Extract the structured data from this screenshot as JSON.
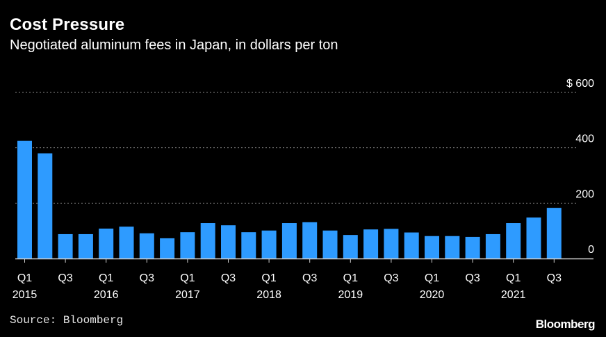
{
  "header": {
    "title": "Cost Pressure",
    "subtitle": "Negotiated aluminum fees in Japan, in dollars per ton"
  },
  "footer": {
    "source": "Source: Bloomberg",
    "brand": "Bloomberg"
  },
  "colors": {
    "bar": "#2e9bff",
    "background": "#000000",
    "grid": "#8a8a8a",
    "text": "#ffffff"
  },
  "chart_data": {
    "type": "bar",
    "title": "Cost Pressure",
    "subtitle": "Negotiated aluminum fees in Japan, in dollars per ton",
    "categories": [
      "Q1 2015",
      "Q2 2015",
      "Q3 2015",
      "Q4 2015",
      "Q1 2016",
      "Q2 2016",
      "Q3 2016",
      "Q4 2016",
      "Q1 2017",
      "Q2 2017",
      "Q3 2017",
      "Q4 2017",
      "Q1 2018",
      "Q2 2018",
      "Q3 2018",
      "Q4 2018",
      "Q1 2019",
      "Q2 2019",
      "Q3 2019",
      "Q4 2019",
      "Q1 2020",
      "Q2 2020",
      "Q3 2020",
      "Q4 2020",
      "Q1 2021",
      "Q2 2021",
      "Q3 2021"
    ],
    "values": [
      425,
      380,
      88,
      88,
      108,
      115,
      91,
      73,
      95,
      128,
      120,
      95,
      101,
      128,
      131,
      101,
      85,
      105,
      107,
      94,
      81,
      81,
      78,
      88,
      128,
      148,
      183
    ],
    "ylim": [
      0,
      600
    ],
    "yticks": [
      {
        "value": 600,
        "label": "$ 600"
      },
      {
        "value": 400,
        "label": "400"
      },
      {
        "value": 200,
        "label": "200"
      },
      {
        "value": 0,
        "label": "0"
      }
    ],
    "xticks": [
      {
        "index": 0,
        "quarter": "Q1",
        "year": "2015"
      },
      {
        "index": 2,
        "quarter": "Q3",
        "year": ""
      },
      {
        "index": 4,
        "quarter": "Q1",
        "year": "2016"
      },
      {
        "index": 6,
        "quarter": "Q3",
        "year": ""
      },
      {
        "index": 8,
        "quarter": "Q1",
        "year": "2017"
      },
      {
        "index": 10,
        "quarter": "Q3",
        "year": ""
      },
      {
        "index": 12,
        "quarter": "Q1",
        "year": "2018"
      },
      {
        "index": 14,
        "quarter": "Q3",
        "year": ""
      },
      {
        "index": 16,
        "quarter": "Q1",
        "year": "2019"
      },
      {
        "index": 18,
        "quarter": "Q3",
        "year": ""
      },
      {
        "index": 20,
        "quarter": "Q1",
        "year": "2020"
      },
      {
        "index": 22,
        "quarter": "Q3",
        "year": ""
      },
      {
        "index": 24,
        "quarter": "Q1",
        "year": "2021"
      },
      {
        "index": 26,
        "quarter": "Q3",
        "year": ""
      }
    ],
    "grid": true,
    "legend": "none"
  }
}
